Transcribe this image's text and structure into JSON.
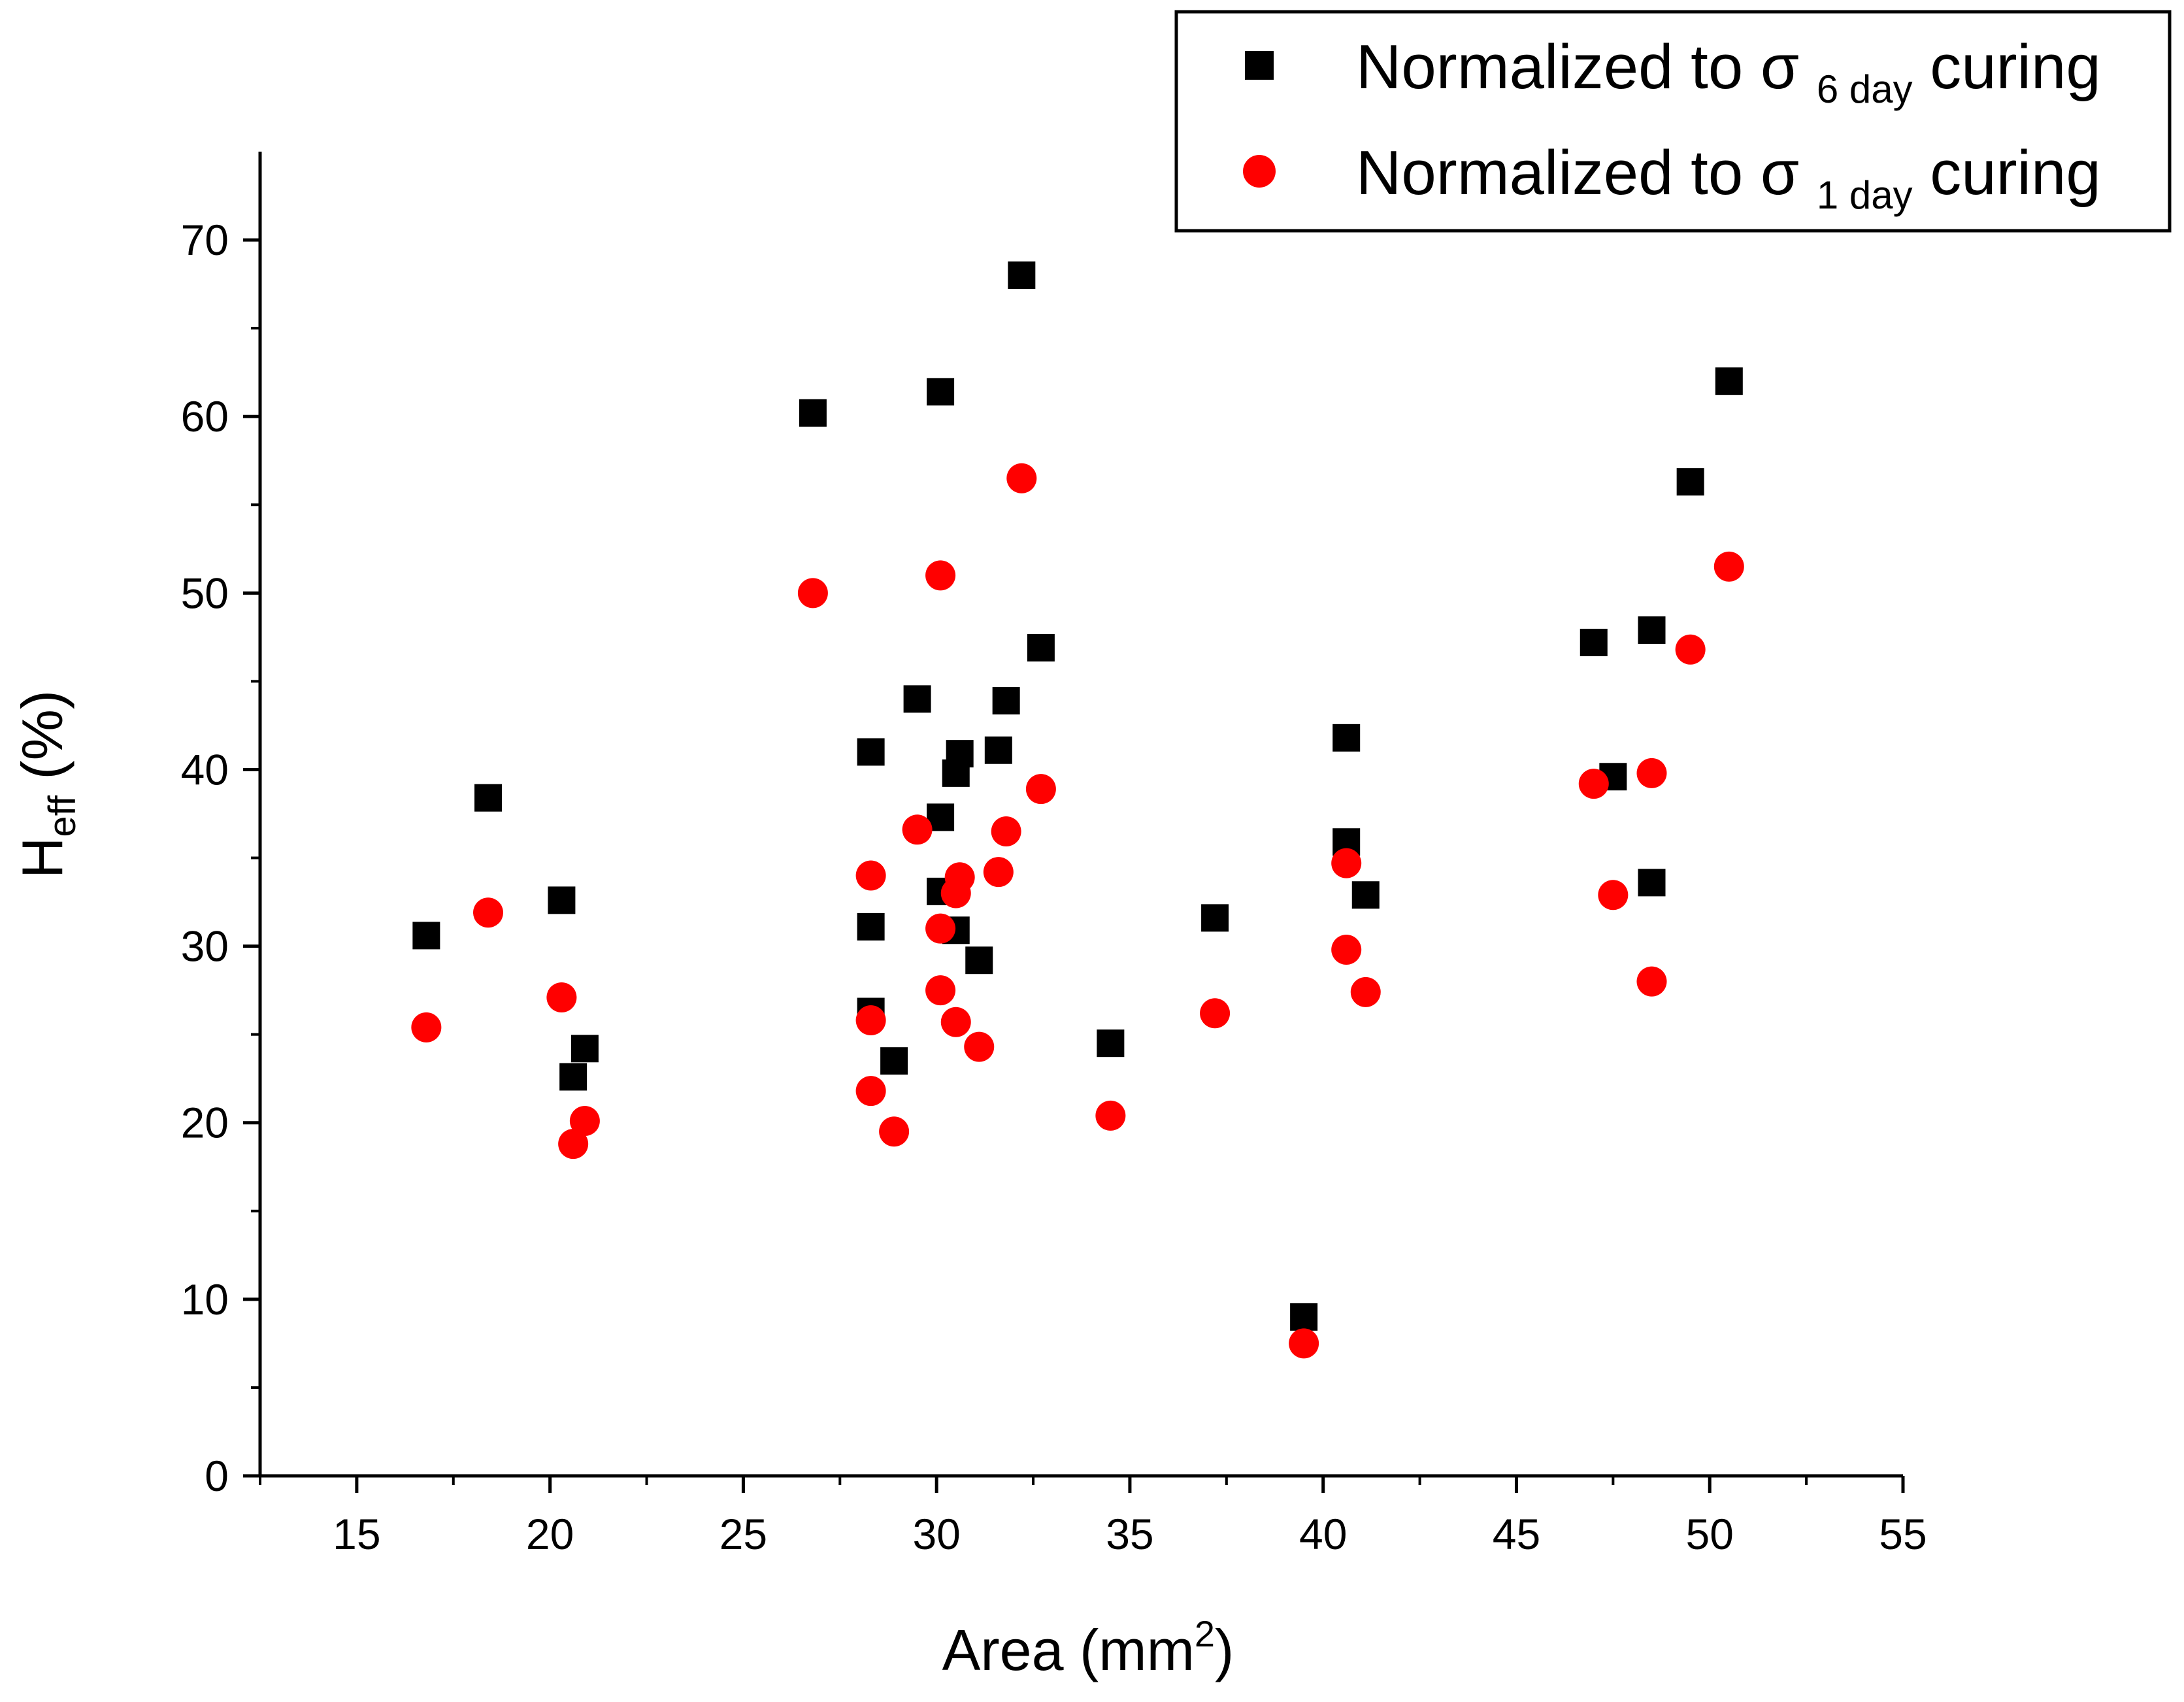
{
  "chart_data": {
    "type": "scatter",
    "xlabel": "Area (mm",
    "xlabel_sup": "2",
    "xlabel_close": ")",
    "ylabel": "H",
    "ylabel_sub": "eff",
    "ylabel_rest": " (%)",
    "xlim": [
      12.5,
      55
    ],
    "ylim": [
      0,
      75
    ],
    "xticks": [
      15,
      20,
      25,
      30,
      35,
      40,
      45,
      50,
      55
    ],
    "yticks": [
      0,
      10,
      20,
      30,
      40,
      50,
      60,
      70
    ],
    "grid": false,
    "legend_position": "top-right",
    "series": [
      {
        "name": "Normalized to σ 6 day curing",
        "label_main": "Normalized to σ ",
        "label_sub": "6 day",
        "label_tail": " curing",
        "marker": "square",
        "color": "#000000",
        "points": [
          [
            16.8,
            30.6
          ],
          [
            18.4,
            38.4
          ],
          [
            20.3,
            32.6
          ],
          [
            20.6,
            22.6
          ],
          [
            20.9,
            24.2
          ],
          [
            26.8,
            60.2
          ],
          [
            28.3,
            41.0
          ],
          [
            28.3,
            31.1
          ],
          [
            28.3,
            26.3
          ],
          [
            28.9,
            23.5
          ],
          [
            29.5,
            44.0
          ],
          [
            30.1,
            61.4
          ],
          [
            30.1,
            37.3
          ],
          [
            30.1,
            33.1
          ],
          [
            30.5,
            39.8
          ],
          [
            30.6,
            40.9
          ],
          [
            30.5,
            30.9
          ],
          [
            31.1,
            29.2
          ],
          [
            31.6,
            41.1
          ],
          [
            31.8,
            43.9
          ],
          [
            32.2,
            68.0
          ],
          [
            32.7,
            46.9
          ],
          [
            34.5,
            24.5
          ],
          [
            37.2,
            31.6
          ],
          [
            39.5,
            9.0
          ],
          [
            40.6,
            41.8
          ],
          [
            40.6,
            35.9
          ],
          [
            41.1,
            32.9
          ],
          [
            47.0,
            47.2
          ],
          [
            47.5,
            39.6
          ],
          [
            48.5,
            47.9
          ],
          [
            48.5,
            33.6
          ],
          [
            49.5,
            56.3
          ],
          [
            50.5,
            62.0
          ]
        ]
      },
      {
        "name": "Normalized to σ 1 day curing",
        "label_main": "Normalized to σ ",
        "label_sub": "1 day",
        "label_tail": " curing",
        "marker": "circle",
        "color": "#ff0000",
        "points": [
          [
            16.8,
            25.4
          ],
          [
            18.4,
            31.9
          ],
          [
            20.3,
            27.1
          ],
          [
            20.6,
            18.8
          ],
          [
            20.9,
            20.1
          ],
          [
            26.8,
            50.0
          ],
          [
            28.3,
            34.0
          ],
          [
            28.3,
            25.8
          ],
          [
            28.3,
            21.8
          ],
          [
            28.9,
            19.5
          ],
          [
            29.5,
            36.6
          ],
          [
            30.1,
            51.0
          ],
          [
            30.1,
            31.0
          ],
          [
            30.1,
            27.5
          ],
          [
            30.5,
            33.0
          ],
          [
            30.6,
            33.9
          ],
          [
            30.5,
            25.7
          ],
          [
            31.1,
            24.3
          ],
          [
            31.6,
            34.2
          ],
          [
            31.8,
            36.5
          ],
          [
            32.2,
            56.5
          ],
          [
            32.7,
            38.9
          ],
          [
            34.5,
            20.4
          ],
          [
            37.2,
            26.2
          ],
          [
            39.5,
            7.5
          ],
          [
            40.6,
            34.7
          ],
          [
            40.6,
            29.8
          ],
          [
            41.1,
            27.4
          ],
          [
            47.0,
            39.2
          ],
          [
            47.5,
            32.9
          ],
          [
            48.5,
            39.8
          ],
          [
            48.5,
            28.0
          ],
          [
            49.5,
            46.8
          ],
          [
            50.5,
            51.5
          ]
        ]
      }
    ]
  }
}
